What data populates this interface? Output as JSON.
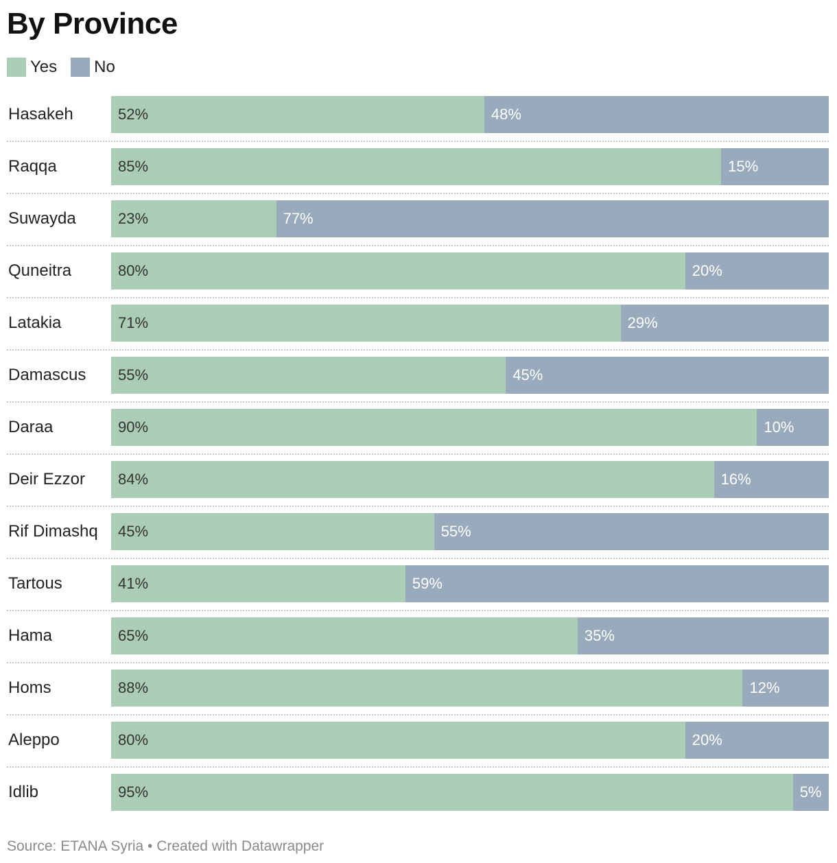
{
  "chart_data": {
    "type": "bar",
    "orientation": "horizontal-stacked-100",
    "title": "By Province",
    "categories": [
      "Hasakeh",
      "Raqqa",
      "Suwayda",
      "Quneitra",
      "Latakia",
      "Damascus",
      "Daraa",
      "Deir Ezzor",
      "Rif Dimashq",
      "Tartous",
      "Hama",
      "Homs",
      "Aleppo",
      "Idlib"
    ],
    "series": [
      {
        "name": "Yes",
        "color": "#abcdb5",
        "values": [
          52,
          85,
          23,
          80,
          71,
          55,
          90,
          84,
          45,
          41,
          65,
          88,
          80,
          95
        ]
      },
      {
        "name": "No",
        "color": "#98aabc",
        "values": [
          48,
          15,
          77,
          20,
          29,
          45,
          10,
          16,
          55,
          59,
          35,
          12,
          20,
          5
        ]
      }
    ],
    "value_suffix": "%",
    "legend": "top-left",
    "xlim": [
      0,
      100
    ]
  },
  "footer": {
    "source": "Source: ETANA Syria • Created with Datawrapper"
  }
}
